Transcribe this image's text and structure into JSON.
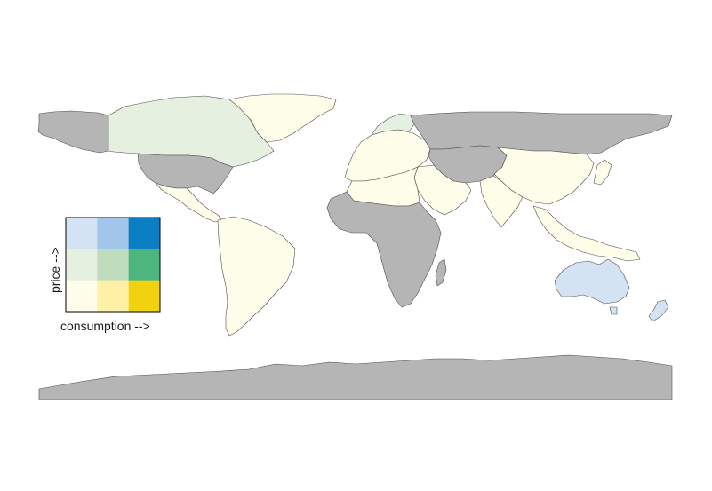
{
  "map": {
    "type": "bivariate-choropleth",
    "projection": "equirectangular",
    "colors": {
      "no_data": "#b5b5b5",
      "border": "#4d4d4d"
    }
  },
  "legend": {
    "x_label": "consumption  -->",
    "y_label": "price  -->",
    "grid": [
      [
        "#d3e3f3",
        "#a1c6ea",
        "#0b7ec4"
      ],
      [
        "#e5f0e0",
        "#bfdcbc",
        "#4db67f"
      ],
      [
        "#fefde9",
        "#fef1a6",
        "#f1d20f"
      ]
    ]
  },
  "regions": [
    {
      "name": "Canada",
      "color": "#e5f0e0"
    },
    {
      "name": "Alaska",
      "color": "#b5b5b5"
    },
    {
      "name": "Greenland",
      "color": "#fefde9"
    },
    {
      "name": "United States",
      "color": "#b5b5b5"
    },
    {
      "name": "Mexico & Central America",
      "color": "#fefde9"
    },
    {
      "name": "South America",
      "color": "#fefde9"
    },
    {
      "name": "Europe",
      "color": "#fefde9"
    },
    {
      "name": "Scandinavia",
      "color": "#e5f0e0"
    },
    {
      "name": "Russia",
      "color": "#b5b5b5"
    },
    {
      "name": "Central Asia",
      "color": "#b5b5b5"
    },
    {
      "name": "China",
      "color": "#fefde9"
    },
    {
      "name": "India",
      "color": "#fefde9"
    },
    {
      "name": "Middle East",
      "color": "#fefde9"
    },
    {
      "name": "North Africa",
      "color": "#fefde9"
    },
    {
      "name": "Sub-Saharan Africa",
      "color": "#b5b5b5"
    },
    {
      "name": "Southeast Asia",
      "color": "#fefde9"
    },
    {
      "name": "Australia",
      "color": "#d3e3f3"
    },
    {
      "name": "New Zealand",
      "color": "#d3e3f3"
    },
    {
      "name": "Antarctica",
      "color": "#b5b5b5"
    }
  ]
}
